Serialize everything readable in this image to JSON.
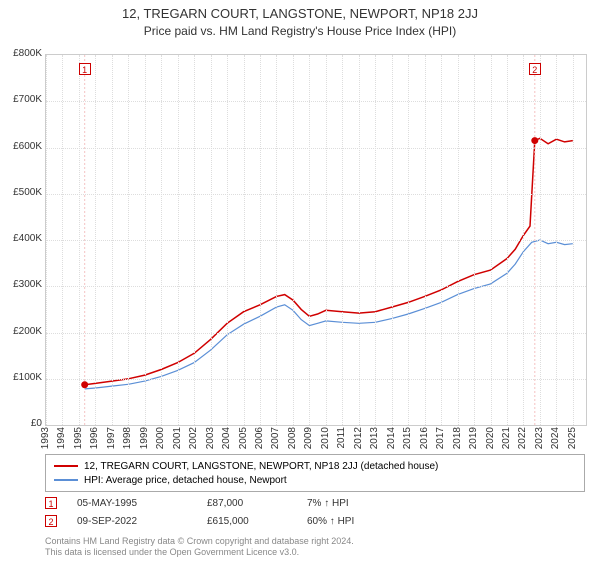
{
  "title": "12, TREGARN COURT, LANGSTONE, NEWPORT, NP18 2JJ",
  "subtitle": "Price paid vs. HM Land Registry's House Price Index (HPI)",
  "chart": {
    "type": "line",
    "background_color": "#ffffff",
    "grid_color": "#dddddd",
    "border_color": "#cccccc",
    "x_years": [
      1993,
      1994,
      1995,
      1996,
      1997,
      1998,
      1999,
      2000,
      2001,
      2002,
      2003,
      2004,
      2005,
      2006,
      2007,
      2008,
      2009,
      2010,
      2011,
      2012,
      2013,
      2014,
      2015,
      2016,
      2017,
      2018,
      2019,
      2020,
      2021,
      2022,
      2023,
      2024,
      2025
    ],
    "x_min": 1993,
    "x_max": 2025.8,
    "y_ticks": [
      0,
      100,
      200,
      300,
      400,
      500,
      600,
      700,
      800
    ],
    "y_labels": [
      "£0",
      "£100K",
      "£200K",
      "£300K",
      "£400K",
      "£500K",
      "£600K",
      "£700K",
      "£800K"
    ],
    "y_min": 0,
    "y_max": 800,
    "label_fontsize": 10,
    "title_fontsize": 13,
    "series": [
      {
        "name": "price_paid",
        "color": "#d00000",
        "width": 1.5,
        "points": [
          [
            1995.35,
            87
          ],
          [
            1996,
            90
          ],
          [
            1997,
            95
          ],
          [
            1998,
            100
          ],
          [
            1999,
            108
          ],
          [
            2000,
            120
          ],
          [
            2001,
            135
          ],
          [
            2002,
            155
          ],
          [
            2003,
            185
          ],
          [
            2004,
            220
          ],
          [
            2005,
            245
          ],
          [
            2006,
            260
          ],
          [
            2007,
            278
          ],
          [
            2007.5,
            282
          ],
          [
            2008,
            270
          ],
          [
            2008.5,
            250
          ],
          [
            2009,
            235
          ],
          [
            2009.5,
            240
          ],
          [
            2010,
            248
          ],
          [
            2011,
            245
          ],
          [
            2012,
            242
          ],
          [
            2013,
            245
          ],
          [
            2014,
            255
          ],
          [
            2015,
            265
          ],
          [
            2016,
            278
          ],
          [
            2017,
            292
          ],
          [
            2018,
            310
          ],
          [
            2019,
            325
          ],
          [
            2020,
            335
          ],
          [
            2021,
            360
          ],
          [
            2021.5,
            380
          ],
          [
            2022,
            410
          ],
          [
            2022.4,
            430
          ],
          [
            2022.69,
            615
          ],
          [
            2023,
            620
          ],
          [
            2023.5,
            608
          ],
          [
            2024,
            618
          ],
          [
            2024.5,
            612
          ],
          [
            2025,
            615
          ]
        ]
      },
      {
        "name": "hpi",
        "color": "#5b8fd6",
        "width": 1.2,
        "points": [
          [
            1995.35,
            78
          ],
          [
            1996,
            80
          ],
          [
            1997,
            84
          ],
          [
            1998,
            88
          ],
          [
            1999,
            95
          ],
          [
            2000,
            105
          ],
          [
            2001,
            118
          ],
          [
            2002,
            135
          ],
          [
            2003,
            162
          ],
          [
            2004,
            195
          ],
          [
            2005,
            218
          ],
          [
            2006,
            235
          ],
          [
            2007,
            255
          ],
          [
            2007.5,
            260
          ],
          [
            2008,
            248
          ],
          [
            2008.5,
            228
          ],
          [
            2009,
            215
          ],
          [
            2009.5,
            220
          ],
          [
            2010,
            225
          ],
          [
            2011,
            222
          ],
          [
            2012,
            220
          ],
          [
            2013,
            222
          ],
          [
            2014,
            230
          ],
          [
            2015,
            240
          ],
          [
            2016,
            252
          ],
          [
            2017,
            265
          ],
          [
            2018,
            282
          ],
          [
            2019,
            295
          ],
          [
            2020,
            305
          ],
          [
            2021,
            328
          ],
          [
            2021.5,
            348
          ],
          [
            2022,
            375
          ],
          [
            2022.5,
            395
          ],
          [
            2023,
            400
          ],
          [
            2023.5,
            392
          ],
          [
            2024,
            395
          ],
          [
            2024.5,
            390
          ],
          [
            2025,
            392
          ]
        ]
      }
    ],
    "sale_markers": [
      {
        "id": "1",
        "year": 1995.35,
        "value": 87,
        "dot_color": "#d00000",
        "box_top": true
      },
      {
        "id": "2",
        "year": 2022.69,
        "value": 615,
        "dot_color": "#d00000",
        "box_top": true
      }
    ]
  },
  "legend": {
    "items": [
      {
        "color": "#d00000",
        "label": "12, TREGARN COURT, LANGSTONE, NEWPORT, NP18 2JJ (detached house)"
      },
      {
        "color": "#5b8fd6",
        "label": "HPI: Average price, detached house, Newport"
      }
    ]
  },
  "sales": [
    {
      "id": "1",
      "date": "05-MAY-1995",
      "price": "£87,000",
      "diff": "7% ↑ HPI"
    },
    {
      "id": "2",
      "date": "09-SEP-2022",
      "price": "£615,000",
      "diff": "60% ↑ HPI"
    }
  ],
  "footer": {
    "line1": "Contains HM Land Registry data © Crown copyright and database right 2024.",
    "line2": "This data is licensed under the Open Government Licence v3.0."
  }
}
